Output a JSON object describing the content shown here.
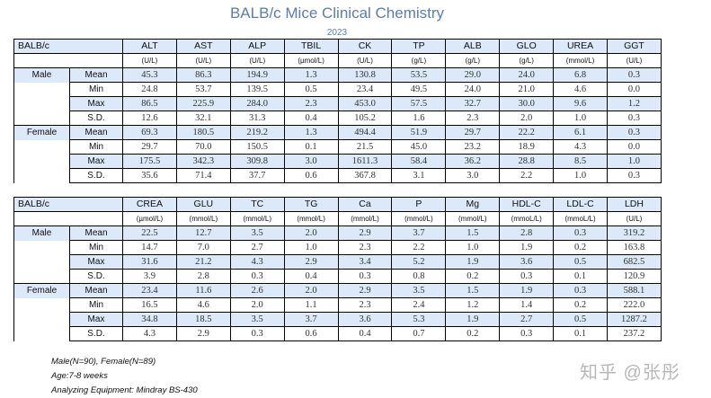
{
  "title": "BALB/c Mice Clinical Chemistry",
  "year": "2023",
  "tables": [
    {
      "corner": "BALB/c",
      "columns": [
        "ALT",
        "AST",
        "ALP",
        "TBIL",
        "CK",
        "TP",
        "ALB",
        "GLO",
        "UREA",
        "GGT"
      ],
      "units": [
        "(U/L)",
        "(U/L)",
        "(U/L)",
        "(µmol/L)",
        "(U/L)",
        "(g/L)",
        "(g/L)",
        "(g/L)",
        "(mmol/L)",
        "(U/L)"
      ],
      "groups": [
        {
          "label": "Male",
          "rows": [
            {
              "stat": "Mean",
              "values": [
                "45.3",
                "86.3",
                "194.9",
                "1.3",
                "130.8",
                "53.5",
                "29.0",
                "24.0",
                "6.8",
                "0.3"
              ]
            },
            {
              "stat": "Min",
              "values": [
                "24.8",
                "53.7",
                "139.5",
                "0.5",
                "23.4",
                "49.5",
                "24.0",
                "21.0",
                "4.6",
                "0.0"
              ]
            },
            {
              "stat": "Max",
              "values": [
                "86.5",
                "225.9",
                "284.0",
                "2.3",
                "453.0",
                "57.5",
                "32.7",
                "30.0",
                "9.6",
                "1.2"
              ]
            },
            {
              "stat": "S.D.",
              "values": [
                "12.6",
                "32.1",
                "31.3",
                "0.4",
                "105.2",
                "1.6",
                "2.3",
                "2.0",
                "1.0",
                "0.3"
              ]
            }
          ]
        },
        {
          "label": "Female",
          "rows": [
            {
              "stat": "Mean",
              "values": [
                "69.3",
                "180.5",
                "219.2",
                "1.3",
                "494.4",
                "51.9",
                "29.7",
                "22.2",
                "6.1",
                "0.3"
              ]
            },
            {
              "stat": "Min",
              "values": [
                "29.7",
                "70.0",
                "150.5",
                "0.1",
                "21.5",
                "45.0",
                "23.2",
                "18.9",
                "4.3",
                "0.0"
              ]
            },
            {
              "stat": "Max",
              "values": [
                "175.5",
                "342.3",
                "309.8",
                "3.0",
                "1611.3",
                "58.4",
                "36.2",
                "28.8",
                "8.5",
                "1.0"
              ]
            },
            {
              "stat": "S.D.",
              "values": [
                "35.6",
                "71.4",
                "37.7",
                "0.6",
                "367.8",
                "3.1",
                "3.0",
                "2.2",
                "1.0",
                "0.3"
              ]
            }
          ]
        }
      ]
    },
    {
      "corner": "BALB/c",
      "columns": [
        "CREA",
        "GLU",
        "TC",
        "TG",
        "Ca",
        "P",
        "Mg",
        "HDL-C",
        "LDL-C",
        "LDH"
      ],
      "units": [
        "(µmol/L)",
        "(mmol/L)",
        "(mmol/L)",
        "(mmol/L)",
        "(mmol/L)",
        "(mmol/L)",
        "(mmol/L)",
        "(mmoL/L)",
        "(mmoL/L)",
        "(U/L)"
      ],
      "groups": [
        {
          "label": "Male",
          "rows": [
            {
              "stat": "Mean",
              "values": [
                "22.5",
                "12.7",
                "3.5",
                "2.0",
                "2.9",
                "3.7",
                "1.5",
                "2.8",
                "0.3",
                "319.2"
              ]
            },
            {
              "stat": "Min",
              "values": [
                "14.7",
                "7.0",
                "2.7",
                "1.0",
                "2.3",
                "2.2",
                "1.0",
                "1.9",
                "0.2",
                "163.8"
              ]
            },
            {
              "stat": "Max",
              "values": [
                "31.6",
                "21.2",
                "4.3",
                "2.9",
                "3.4",
                "5.2",
                "1.9",
                "3.6",
                "0.5",
                "682.5"
              ]
            },
            {
              "stat": "S.D.",
              "values": [
                "3.9",
                "2.8",
                "0.3",
                "0.4",
                "0.3",
                "0.8",
                "0.2",
                "0.3",
                "0.1",
                "120.9"
              ]
            }
          ]
        },
        {
          "label": "Female",
          "rows": [
            {
              "stat": "Mean",
              "values": [
                "23.4",
                "11.6",
                "2.6",
                "2.0",
                "2.9",
                "3.5",
                "1.5",
                "1.9",
                "0.3",
                "588.1"
              ]
            },
            {
              "stat": "Min",
              "values": [
                "16.5",
                "4.6",
                "2.0",
                "1.1",
                "2.3",
                "2.4",
                "1.2",
                "1.4",
                "0.2",
                "222.0"
              ]
            },
            {
              "stat": "Max",
              "values": [
                "34.8",
                "18.5",
                "3.5",
                "3.7",
                "3.6",
                "5.3",
                "1.9",
                "2.7",
                "0.5",
                "1287.2"
              ]
            },
            {
              "stat": "S.D.",
              "values": [
                "4.3",
                "2.9",
                "0.3",
                "0.6",
                "0.4",
                "0.7",
                "0.2",
                "0.3",
                "0.1",
                "237.2"
              ]
            }
          ]
        }
      ]
    }
  ],
  "notes": [
    "Male(N=90), Female(N=89)",
    "Age:7-8 weeks",
    "Analyzing Equipment: Mindray BS-430"
  ],
  "watermark": "知乎 @张彤",
  "colors": {
    "title": "#5b7db1",
    "highlight": "#dbe9f8"
  }
}
